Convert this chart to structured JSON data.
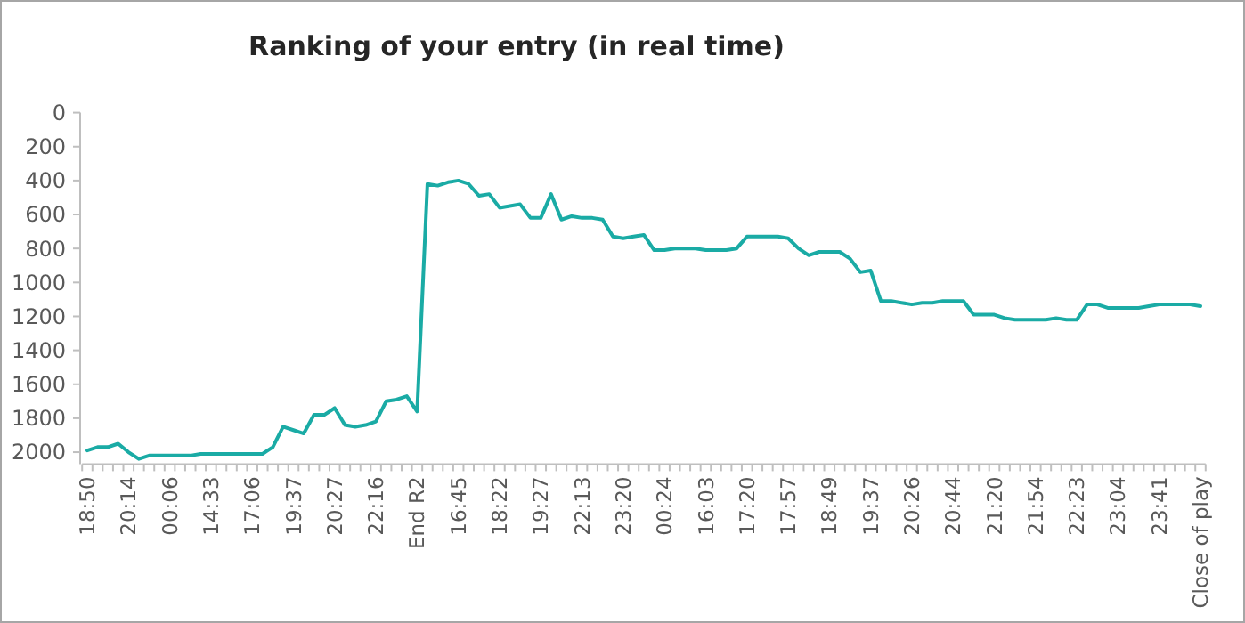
{
  "chart_data": {
    "type": "line",
    "title": "Ranking of your entry (in real time)",
    "categories": [
      "18:50",
      null,
      null,
      null,
      "20:14",
      null,
      null,
      null,
      "00:06",
      null,
      null,
      null,
      "14:33",
      null,
      null,
      null,
      "17:06",
      null,
      null,
      null,
      "19:37",
      null,
      null,
      null,
      "20:27",
      null,
      null,
      null,
      "22:16",
      null,
      null,
      null,
      "End R2",
      null,
      null,
      null,
      "16:45",
      null,
      null,
      null,
      "18:22",
      null,
      null,
      null,
      "19:27",
      null,
      null,
      null,
      "22:13",
      null,
      null,
      null,
      "23:20",
      null,
      null,
      null,
      "00:24",
      null,
      null,
      null,
      "16:03",
      null,
      null,
      null,
      "17:20",
      null,
      null,
      null,
      "17:57",
      null,
      null,
      null,
      "18:49",
      null,
      null,
      null,
      "19:37",
      null,
      null,
      null,
      "20:26",
      null,
      null,
      null,
      "20:44",
      null,
      null,
      null,
      "21:20",
      null,
      null,
      null,
      "21:54",
      null,
      null,
      null,
      "22:23",
      null,
      null,
      null,
      "23:04",
      null,
      null,
      null,
      "23:41",
      null,
      null,
      null,
      "Close of play"
    ],
    "series": [
      {
        "color": "#1aaba5",
        "values": [
          1990,
          1970,
          1970,
          1950,
          2000,
          2040,
          2020,
          2020,
          2020,
          2020,
          2020,
          2010,
          2010,
          2010,
          2010,
          2010,
          2010,
          2010,
          1970,
          1850,
          1870,
          1890,
          1780,
          1780,
          1740,
          1840,
          1850,
          1840,
          1820,
          1700,
          1690,
          1670,
          1760,
          420,
          430,
          410,
          400,
          420,
          490,
          480,
          560,
          550,
          540,
          620,
          620,
          480,
          630,
          610,
          620,
          620,
          630,
          730,
          740,
          730,
          720,
          810,
          810,
          800,
          800,
          800,
          810,
          810,
          810,
          800,
          730,
          730,
          730,
          730,
          740,
          800,
          840,
          820,
          820,
          820,
          860,
          940,
          930,
          1110,
          1110,
          1120,
          1130,
          1120,
          1120,
          1110,
          1110,
          1110,
          1190,
          1190,
          1190,
          1210,
          1220,
          1220,
          1220,
          1220,
          1210,
          1220,
          1220,
          1130,
          1130,
          1150,
          1150,
          1150,
          1150,
          1140,
          1130,
          1130,
          1130,
          1130,
          1140
        ]
      }
    ],
    "ylim": [
      2070,
      0
    ],
    "yticks": [
      0,
      200,
      400,
      600,
      800,
      1000,
      1200,
      1400,
      1600,
      1800,
      2000
    ],
    "grid": false,
    "marker": "none",
    "line_style": "solid"
  }
}
